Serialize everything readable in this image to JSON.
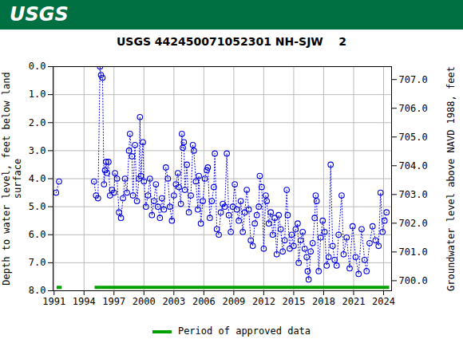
{
  "chart_data": {
    "type": "line",
    "source_label": "USGS",
    "title": "USGS 442450071052301 NH-SJW    2",
    "y_label": "Depth to water level, feet below land surface",
    "y2_label": "Groundwater level above NAVD 1988, feet",
    "marker": "circle",
    "line_style": "dotted",
    "color": "#0000e0",
    "grid": true,
    "legend": "bottom",
    "xlim": [
      1990.9,
      2024.8
    ],
    "xticks": [
      1991,
      1994,
      1997,
      2000,
      2003,
      2006,
      2009,
      2012,
      2015,
      2018,
      2021,
      2024
    ],
    "ylim": [
      0,
      8
    ],
    "yticks": [
      {
        "value": 0,
        "label": "0.0"
      },
      {
        "value": 1,
        "label": "1.0"
      },
      {
        "value": 2,
        "label": "2.0"
      },
      {
        "value": 3,
        "label": "3.0"
      },
      {
        "value": 4,
        "label": "4.0"
      },
      {
        "value": 5,
        "label": "5.0"
      },
      {
        "value": 6,
        "label": "6.0"
      },
      {
        "value": 7,
        "label": "7.0"
      },
      {
        "value": 8,
        "label": "8.0"
      }
    ],
    "y2lim": [
      707.45,
      699.65
    ],
    "y2ticks": [
      {
        "value": 707,
        "label": "707.0"
      },
      {
        "value": 706,
        "label": "706.0"
      },
      {
        "value": 705,
        "label": "705.0"
      },
      {
        "value": 704,
        "label": "704.0"
      },
      {
        "value": 703,
        "label": "703.0"
      },
      {
        "value": 702,
        "label": "702.0"
      },
      {
        "value": 701,
        "label": "701.0"
      },
      {
        "value": 700,
        "label": "700.0"
      }
    ],
    "x": [
      1991.2,
      1991.5,
      null,
      1995.0,
      1995.2,
      1995.4,
      1995.6,
      1995.7,
      1995.85,
      1996.0,
      1996.1,
      1996.2,
      1996.3,
      1996.45,
      1996.6,
      1996.8,
      1997.0,
      1997.1,
      1997.3,
      1997.5,
      1997.7,
      1997.9,
      1998.1,
      1998.3,
      1998.5,
      1998.6,
      1998.8,
      1998.9,
      1999.1,
      1999.3,
      1999.5,
      1999.6,
      1999.7,
      1999.9,
      2000.0,
      2000.2,
      2000.4,
      2000.6,
      2000.8,
      2001.0,
      2001.2,
      2001.4,
      2001.6,
      2001.8,
      2002.0,
      2002.2,
      2002.4,
      2002.6,
      2002.8,
      2003.0,
      2003.2,
      2003.4,
      2003.5,
      2003.7,
      2003.8,
      2003.9,
      2004.0,
      2004.1,
      2004.3,
      2004.5,
      2004.7,
      2004.9,
      2005.0,
      2005.2,
      2005.4,
      2005.5,
      2005.7,
      2005.9,
      2006.1,
      2006.3,
      2006.4,
      2006.6,
      2006.8,
      2007.0,
      2007.1,
      2007.3,
      2007.5,
      2007.7,
      2007.9,
      2008.1,
      2008.3,
      2008.5,
      2008.7,
      2008.9,
      2009.1,
      2009.3,
      2009.5,
      2009.7,
      2009.9,
      2010.1,
      2010.3,
      2010.5,
      2010.7,
      2010.9,
      2011.1,
      2011.3,
      2011.5,
      2011.6,
      2011.8,
      2012.0,
      2012.2,
      2012.3,
      2012.5,
      2012.7,
      2012.9,
      2013.1,
      2013.3,
      2013.5,
      2013.7,
      2013.9,
      2014.1,
      2014.3,
      2014.4,
      2014.6,
      2014.8,
      2015.0,
      2015.2,
      2015.4,
      2015.5,
      2015.7,
      2015.9,
      2016.1,
      2016.3,
      2016.4,
      2016.5,
      2016.7,
      2016.9,
      2017.1,
      2017.2,
      2017.3,
      2017.5,
      2017.7,
      2017.9,
      2018.1,
      2018.3,
      2018.5,
      2018.7,
      2018.9,
      2019.1,
      2019.3,
      2019.5,
      2019.8,
      2020.0,
      2020.3,
      2020.6,
      2020.9,
      2021.2,
      2021.5,
      2021.8,
      2022.1,
      2022.3,
      2022.6,
      2022.9,
      2023.2,
      2023.5,
      2023.7,
      2023.9,
      2024.1,
      2024.3
    ],
    "values": [
      4.5,
      4.1,
      null,
      4.1,
      4.6,
      4.7,
      0.0,
      0.3,
      0.4,
      4.2,
      3.7,
      3.4,
      3.8,
      3.4,
      4.6,
      4.4,
      4.5,
      3.8,
      4.0,
      5.2,
      5.4,
      4.7,
      4.0,
      4.5,
      3.0,
      2.4,
      3.2,
      4.6,
      2.8,
      4.8,
      4.0,
      1.8,
      3.9,
      2.7,
      4.1,
      5.0,
      4.6,
      4.0,
      5.3,
      4.8,
      4.2,
      5.0,
      5.4,
      4.7,
      5.1,
      3.6,
      4.0,
      5.0,
      5.5,
      4.6,
      4.2,
      3.8,
      4.3,
      4.9,
      2.4,
      2.9,
      2.7,
      4.4,
      3.5,
      5.2,
      4.6,
      2.8,
      3.0,
      4.1,
      5.1,
      3.9,
      5.6,
      4.8,
      4.0,
      3.7,
      3.6,
      5.4,
      4.8,
      4.3,
      3.1,
      5.8,
      6.0,
      5.2,
      4.9,
      5.0,
      3.1,
      5.3,
      5.9,
      5.0,
      4.2,
      5.1,
      5.5,
      4.8,
      5.9,
      5.2,
      4.4,
      5.1,
      6.2,
      6.4,
      5.6,
      5.3,
      5.0,
      3.9,
      4.3,
      6.5,
      4.6,
      4.8,
      5.6,
      5.2,
      6.0,
      5.4,
      6.7,
      5.3,
      5.8,
      6.6,
      6.2,
      4.4,
      5.3,
      6.5,
      6.0,
      6.4,
      5.8,
      5.6,
      7.0,
      6.2,
      5.9,
      6.5,
      6.8,
      7.3,
      7.6,
      6.6,
      6.3,
      5.4,
      4.6,
      4.8,
      7.3,
      6.1,
      5.5,
      5.9,
      7.1,
      6.8,
      3.5,
      6.4,
      6.9,
      7.1,
      6.0,
      4.6,
      6.7,
      6.1,
      7.2,
      5.7,
      6.8,
      7.4,
      5.8,
      6.9,
      7.3,
      6.3,
      5.7,
      6.2,
      6.4,
      4.5,
      5.9,
      5.5,
      5.2
    ],
    "approved": {
      "name": "Period of approved data",
      "color": "#00a000",
      "ranges": [
        [
          1991.3,
          1991.8
        ],
        [
          1995.1,
          2024.6
        ]
      ]
    }
  }
}
